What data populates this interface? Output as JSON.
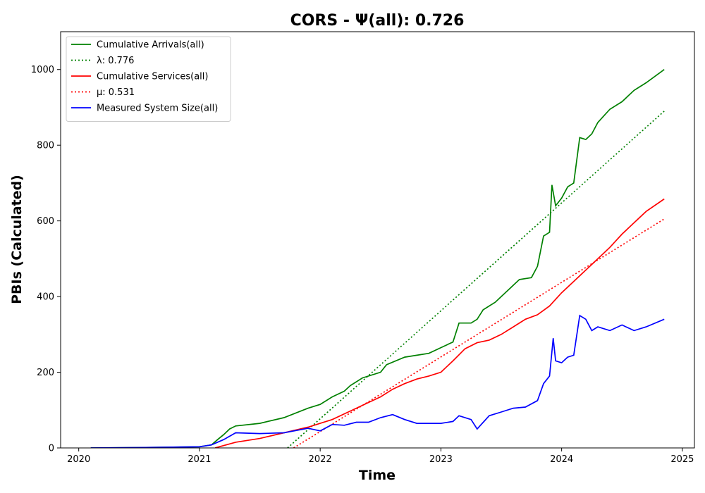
{
  "chart_data": {
    "type": "line",
    "title": "CORS -  Ψ(all): 0.726",
    "xlabel": "Time",
    "ylabel": "PBIs (Calculated)",
    "xlim": [
      2019.85,
      2025.1
    ],
    "ylim": [
      0,
      1100
    ],
    "x_ticks": [
      2020,
      2021,
      2022,
      2023,
      2024,
      2025
    ],
    "x_tick_labels": [
      "2020",
      "2021",
      "2022",
      "2023",
      "2024",
      "2025"
    ],
    "y_ticks": [
      0,
      200,
      400,
      600,
      800,
      1000
    ],
    "y_tick_labels": [
      "0",
      "200",
      "400",
      "600",
      "800",
      "1000"
    ],
    "grid": false,
    "legend_position": "top-left",
    "series": [
      {
        "name": "Cumulative Arrivals(all)",
        "style": "solid",
        "color": "#008000",
        "x": [
          2020.1,
          2020.5,
          2021.0,
          2021.1,
          2021.15,
          2021.2,
          2021.25,
          2021.3,
          2021.5,
          2021.7,
          2021.9,
          2022.0,
          2022.1,
          2022.2,
          2022.25,
          2022.35,
          2022.5,
          2022.55,
          2022.7,
          2022.8,
          2022.9,
          2023.0,
          2023.1,
          2023.15,
          2023.25,
          2023.3,
          2023.35,
          2023.45,
          2023.55,
          2023.65,
          2023.75,
          2023.8,
          2023.85,
          2023.9,
          2023.92,
          2023.95,
          2024.0,
          2024.05,
          2024.1,
          2024.15,
          2024.2,
          2024.25,
          2024.3,
          2024.4,
          2024.5,
          2024.6,
          2024.7,
          2024.85
        ],
        "y": [
          0,
          1,
          3,
          8,
          22,
          35,
          50,
          58,
          65,
          80,
          105,
          115,
          135,
          150,
          165,
          185,
          200,
          220,
          240,
          245,
          250,
          265,
          280,
          330,
          330,
          340,
          365,
          385,
          415,
          445,
          450,
          480,
          560,
          570,
          695,
          640,
          660,
          690,
          700,
          820,
          815,
          830,
          860,
          895,
          915,
          945,
          965,
          1000
        ]
      },
      {
        "name": "λ: 0.776",
        "style": "dotted",
        "color": "#008000",
        "x": [
          2021.73,
          2024.85
        ],
        "y": [
          0,
          890
        ]
      },
      {
        "name": "Cumulative Services(all)",
        "style": "solid",
        "color": "#ff0000",
        "x": [
          2021.13,
          2021.3,
          2021.5,
          2021.7,
          2021.9,
          2022.0,
          2022.1,
          2022.2,
          2022.3,
          2022.4,
          2022.5,
          2022.6,
          2022.7,
          2022.8,
          2022.9,
          2023.0,
          2023.1,
          2023.2,
          2023.3,
          2023.4,
          2023.5,
          2023.6,
          2023.7,
          2023.8,
          2023.9,
          2024.0,
          2024.1,
          2024.2,
          2024.3,
          2024.4,
          2024.5,
          2024.6,
          2024.7,
          2024.85
        ],
        "y": [
          0,
          15,
          25,
          40,
          55,
          65,
          75,
          90,
          105,
          120,
          135,
          155,
          170,
          182,
          190,
          200,
          230,
          262,
          278,
          285,
          300,
          320,
          340,
          352,
          375,
          410,
          440,
          470,
          500,
          530,
          565,
          595,
          625,
          658
        ]
      },
      {
        "name": "μ: 0.531",
        "style": "dotted",
        "color": "#ff0000",
        "x": [
          2021.78,
          2024.85
        ],
        "y": [
          0,
          605
        ]
      },
      {
        "name": "Measured System Size(all)",
        "style": "solid",
        "color": "#0000ff",
        "x": [
          2020.1,
          2020.5,
          2021.0,
          2021.1,
          2021.2,
          2021.3,
          2021.5,
          2021.7,
          2021.9,
          2022.0,
          2022.1,
          2022.2,
          2022.3,
          2022.4,
          2022.5,
          2022.6,
          2022.7,
          2022.8,
          2022.9,
          2023.0,
          2023.1,
          2023.15,
          2023.25,
          2023.3,
          2023.4,
          2023.5,
          2023.6,
          2023.7,
          2023.8,
          2023.85,
          2023.9,
          2023.93,
          2023.95,
          2024.0,
          2024.05,
          2024.1,
          2024.15,
          2024.2,
          2024.25,
          2024.3,
          2024.4,
          2024.5,
          2024.6,
          2024.7,
          2024.85
        ],
        "y": [
          0,
          1,
          3,
          8,
          22,
          40,
          38,
          40,
          52,
          45,
          62,
          60,
          68,
          68,
          80,
          88,
          75,
          65,
          65,
          65,
          70,
          85,
          75,
          50,
          85,
          95,
          105,
          108,
          125,
          170,
          190,
          290,
          230,
          225,
          240,
          245,
          350,
          340,
          310,
          320,
          310,
          325,
          310,
          320,
          340
        ]
      }
    ]
  }
}
